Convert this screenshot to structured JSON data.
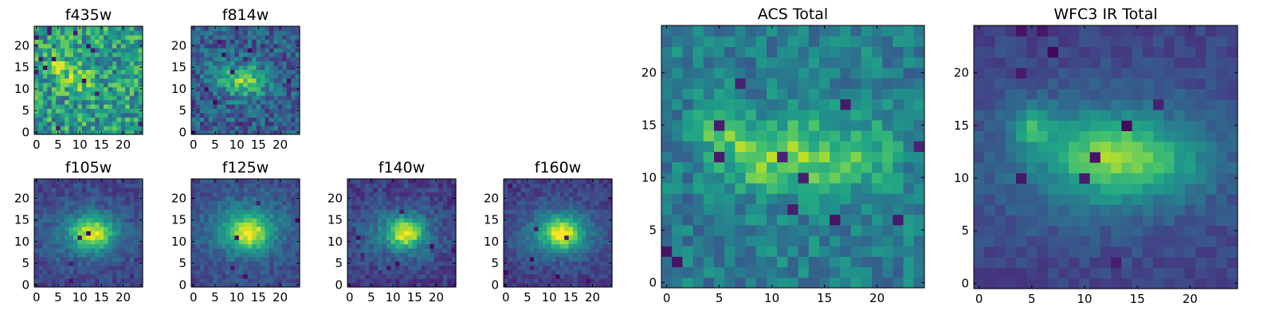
{
  "figure": {
    "colormap": "viridis",
    "background": "#ffffff"
  },
  "chart_data": [
    {
      "type": "heatmap",
      "title": "f435w",
      "xlim": [
        0,
        24
      ],
      "ylim": [
        0,
        24
      ],
      "xticks": [
        0,
        5,
        10,
        15,
        20
      ],
      "yticks": [
        0,
        5,
        10,
        15,
        20
      ],
      "grid": false,
      "features": {
        "blobs": [
          [
            5,
            15,
            0.24,
            2.2,
            2.0
          ],
          [
            10,
            12,
            0.2,
            2.6,
            2.2
          ]
        ],
        "noise": 0.25,
        "base": 0.55,
        "dark": 14,
        "seed": 11
      }
    },
    {
      "type": "heatmap",
      "title": "f814w",
      "xlim": [
        0,
        24
      ],
      "ylim": [
        0,
        24
      ],
      "xticks": [
        0,
        5,
        10,
        15,
        20
      ],
      "yticks": [
        0,
        5,
        10,
        15,
        20
      ],
      "grid": false,
      "features": {
        "blobs": [
          [
            12,
            12,
            0.5,
            3.6,
            2.6
          ],
          [
            6,
            14,
            0.2,
            2.0,
            2.0
          ]
        ],
        "noise": 0.18,
        "base": 0.3,
        "dark": 10,
        "seed": 23
      }
    },
    {
      "type": "heatmap",
      "title": "f105w",
      "xlim": [
        0,
        24
      ],
      "ylim": [
        0,
        24
      ],
      "xticks": [
        0,
        5,
        10,
        15,
        20
      ],
      "yticks": [
        0,
        5,
        10,
        15,
        20
      ],
      "grid": false,
      "features": {
        "blobs": [
          [
            13,
            12,
            0.5,
            3.0,
            2.4
          ],
          [
            12,
            12,
            0.28,
            7.0,
            4.5
          ]
        ],
        "noise": 0.09,
        "base": 0.2,
        "dark": 5,
        "seed": 31
      }
    },
    {
      "type": "heatmap",
      "title": "f125w",
      "xlim": [
        0,
        24
      ],
      "ylim": [
        0,
        24
      ],
      "xticks": [
        0,
        5,
        10,
        15,
        20
      ],
      "yticks": [
        0,
        5,
        10,
        15,
        20
      ],
      "grid": false,
      "features": {
        "blobs": [
          [
            13,
            12,
            0.5,
            3.0,
            2.6
          ],
          [
            12,
            13,
            0.3,
            7.0,
            5.0
          ]
        ],
        "noise": 0.09,
        "base": 0.22,
        "dark": 5,
        "seed": 47
      }
    },
    {
      "type": "heatmap",
      "title": "f140w",
      "xlim": [
        0,
        24
      ],
      "ylim": [
        0,
        24
      ],
      "xticks": [
        0,
        5,
        10,
        15,
        20
      ],
      "yticks": [
        0,
        5,
        10,
        15,
        20
      ],
      "grid": false,
      "features": {
        "blobs": [
          [
            13,
            12,
            0.55,
            2.6,
            2.2
          ],
          [
            12,
            12,
            0.28,
            6.5,
            4.5
          ]
        ],
        "noise": 0.1,
        "base": 0.18,
        "dark": 8,
        "seed": 53
      }
    },
    {
      "type": "heatmap",
      "title": "f160w",
      "xlim": [
        0,
        24
      ],
      "ylim": [
        0,
        24
      ],
      "xticks": [
        0,
        5,
        10,
        15,
        20
      ],
      "yticks": [
        0,
        5,
        10,
        15,
        20
      ],
      "grid": false,
      "features": {
        "blobs": [
          [
            13,
            12,
            0.55,
            3.0,
            2.4
          ],
          [
            12,
            12,
            0.3,
            7.0,
            4.5
          ]
        ],
        "noise": 0.08,
        "base": 0.18,
        "dark": 8,
        "seed": 67
      }
    },
    {
      "type": "heatmap",
      "title": "ACS Total",
      "xlim": [
        0,
        24
      ],
      "ylim": [
        0,
        24
      ],
      "xticks": [
        0,
        5,
        10,
        15,
        20
      ],
      "yticks": [
        0,
        5,
        10,
        15,
        20
      ],
      "grid": false,
      "features": {
        "blobs": [
          [
            5,
            15,
            0.3,
            1.6,
            1.6
          ],
          [
            13,
            12,
            0.32,
            4.2,
            2.6
          ],
          [
            8,
            12,
            0.2,
            2.2,
            2.0
          ],
          [
            19,
            12,
            0.12,
            3.0,
            2.5
          ]
        ],
        "noise": 0.14,
        "base": 0.42,
        "dark": 12,
        "seed": 79
      }
    },
    {
      "type": "heatmap",
      "title": "WFC3 IR Total",
      "xlim": [
        0,
        24
      ],
      "ylim": [
        0,
        24
      ],
      "xticks": [
        0,
        5,
        10,
        15,
        20
      ],
      "yticks": [
        0,
        5,
        10,
        15,
        20
      ],
      "grid": false,
      "features": {
        "blobs": [
          [
            13,
            12,
            0.4,
            4.0,
            2.4
          ],
          [
            5,
            15,
            0.3,
            1.4,
            1.4
          ],
          [
            12,
            12,
            0.25,
            8.0,
            4.5
          ],
          [
            20,
            11,
            0.08,
            2.5,
            2.0
          ]
        ],
        "noise": 0.06,
        "base": 0.2,
        "dark": 10,
        "seed": 97
      }
    }
  ]
}
